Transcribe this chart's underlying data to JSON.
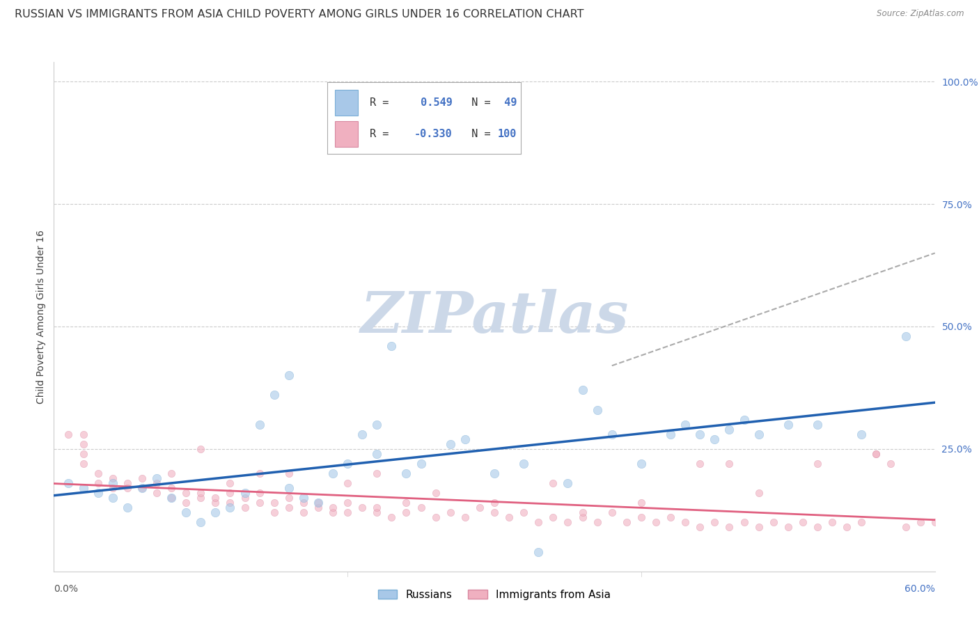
{
  "title": "RUSSIAN VS IMMIGRANTS FROM ASIA CHILD POVERTY AMONG GIRLS UNDER 16 CORRELATION CHART",
  "source": "Source: ZipAtlas.com",
  "ylabel": "Child Poverty Among Girls Under 16",
  "ytick_labels": [
    "100.0%",
    "75.0%",
    "50.0%",
    "25.0%"
  ],
  "ytick_values": [
    1.0,
    0.75,
    0.5,
    0.25
  ],
  "xlim": [
    0.0,
    0.6
  ],
  "ylim": [
    0.0,
    1.04
  ],
  "background_color": "#ffffff",
  "grid_color": "#cccccc",
  "title_fontsize": 11.5,
  "axis_label_fontsize": 10,
  "tick_fontsize": 10,
  "legend_fontsize": 12,
  "watermark": "ZIPatlas",
  "watermark_color": "#ccd8e8",
  "blue_series": {
    "name": "Russians",
    "color": "#a8c8e8",
    "edge_color": "#7aaed6",
    "marker_size": 80,
    "alpha": 0.6,
    "trend_color": "#2060b0",
    "trend_lw": 2.5,
    "x": [
      0.01,
      0.02,
      0.03,
      0.04,
      0.04,
      0.05,
      0.06,
      0.07,
      0.08,
      0.09,
      0.1,
      0.11,
      0.12,
      0.13,
      0.14,
      0.15,
      0.16,
      0.16,
      0.17,
      0.18,
      0.19,
      0.2,
      0.21,
      0.22,
      0.22,
      0.23,
      0.24,
      0.25,
      0.27,
      0.28,
      0.3,
      0.32,
      0.33,
      0.35,
      0.36,
      0.37,
      0.38,
      0.4,
      0.42,
      0.43,
      0.44,
      0.45,
      0.46,
      0.47,
      0.48,
      0.5,
      0.52,
      0.55,
      0.58
    ],
    "y": [
      0.18,
      0.17,
      0.16,
      0.15,
      0.18,
      0.13,
      0.17,
      0.19,
      0.15,
      0.12,
      0.1,
      0.12,
      0.13,
      0.16,
      0.3,
      0.36,
      0.17,
      0.4,
      0.15,
      0.14,
      0.2,
      0.22,
      0.28,
      0.24,
      0.3,
      0.46,
      0.2,
      0.22,
      0.26,
      0.27,
      0.2,
      0.22,
      0.04,
      0.18,
      0.37,
      0.33,
      0.28,
      0.22,
      0.28,
      0.3,
      0.28,
      0.27,
      0.29,
      0.31,
      0.28,
      0.3,
      0.3,
      0.28,
      0.48
    ]
  },
  "pink_series": {
    "name": "Immigrants from Asia",
    "color": "#f0b0c0",
    "edge_color": "#d888a0",
    "marker_size": 55,
    "alpha": 0.6,
    "trend_color": "#e06080",
    "trend_lw": 2.0,
    "x": [
      0.01,
      0.02,
      0.02,
      0.03,
      0.03,
      0.04,
      0.05,
      0.05,
      0.06,
      0.06,
      0.07,
      0.07,
      0.08,
      0.08,
      0.09,
      0.09,
      0.1,
      0.1,
      0.11,
      0.11,
      0.12,
      0.12,
      0.13,
      0.13,
      0.14,
      0.14,
      0.15,
      0.15,
      0.16,
      0.16,
      0.17,
      0.17,
      0.18,
      0.18,
      0.19,
      0.19,
      0.2,
      0.2,
      0.21,
      0.22,
      0.22,
      0.23,
      0.24,
      0.25,
      0.26,
      0.27,
      0.28,
      0.29,
      0.3,
      0.31,
      0.32,
      0.33,
      0.34,
      0.35,
      0.36,
      0.37,
      0.38,
      0.39,
      0.4,
      0.41,
      0.42,
      0.43,
      0.44,
      0.45,
      0.46,
      0.47,
      0.48,
      0.49,
      0.5,
      0.51,
      0.52,
      0.53,
      0.54,
      0.55,
      0.56,
      0.57,
      0.58,
      0.59,
      0.6,
      0.02,
      0.08,
      0.12,
      0.16,
      0.2,
      0.24,
      0.3,
      0.36,
      0.4,
      0.44,
      0.48,
      0.52,
      0.56,
      0.1,
      0.22,
      0.34,
      0.46,
      0.02,
      0.26,
      0.04,
      0.14
    ],
    "y": [
      0.28,
      0.24,
      0.22,
      0.2,
      0.18,
      0.19,
      0.18,
      0.17,
      0.17,
      0.19,
      0.16,
      0.18,
      0.15,
      0.17,
      0.16,
      0.14,
      0.15,
      0.16,
      0.14,
      0.15,
      0.16,
      0.14,
      0.15,
      0.13,
      0.14,
      0.16,
      0.14,
      0.12,
      0.15,
      0.13,
      0.14,
      0.12,
      0.13,
      0.14,
      0.12,
      0.13,
      0.12,
      0.14,
      0.13,
      0.12,
      0.13,
      0.11,
      0.12,
      0.13,
      0.11,
      0.12,
      0.11,
      0.13,
      0.12,
      0.11,
      0.12,
      0.1,
      0.11,
      0.1,
      0.11,
      0.1,
      0.12,
      0.1,
      0.11,
      0.1,
      0.11,
      0.1,
      0.09,
      0.1,
      0.09,
      0.1,
      0.09,
      0.1,
      0.09,
      0.1,
      0.09,
      0.1,
      0.09,
      0.1,
      0.24,
      0.22,
      0.09,
      0.1,
      0.1,
      0.28,
      0.2,
      0.18,
      0.2,
      0.18,
      0.14,
      0.14,
      0.12,
      0.14,
      0.22,
      0.16,
      0.22,
      0.24,
      0.25,
      0.2,
      0.18,
      0.22,
      0.26,
      0.16,
      0.17,
      0.2
    ]
  },
  "dashed_line": {
    "x": [
      0.38,
      0.6
    ],
    "y": [
      0.42,
      0.65
    ],
    "color": "#aaaaaa",
    "lw": 1.5
  },
  "legend_box": {
    "blue_text_R": "R =",
    "blue_val_R": " 0.549",
    "blue_text_N": "N =",
    "blue_val_N": " 49",
    "pink_text_R": "R =",
    "pink_val_R": "-0.330",
    "pink_text_N": "N =",
    "pink_val_N": "100",
    "text_color": "#333333",
    "val_color": "#4472c4",
    "border_color": "#aaaaaa",
    "bg_color": "#ffffff"
  },
  "bottom_legend": {
    "russians_label": "Russians",
    "asia_label": "Immigrants from Asia"
  },
  "tick_color": "#4472c4",
  "xlabel_left_color": "#555555",
  "xlabel_right_color": "#4472c4"
}
